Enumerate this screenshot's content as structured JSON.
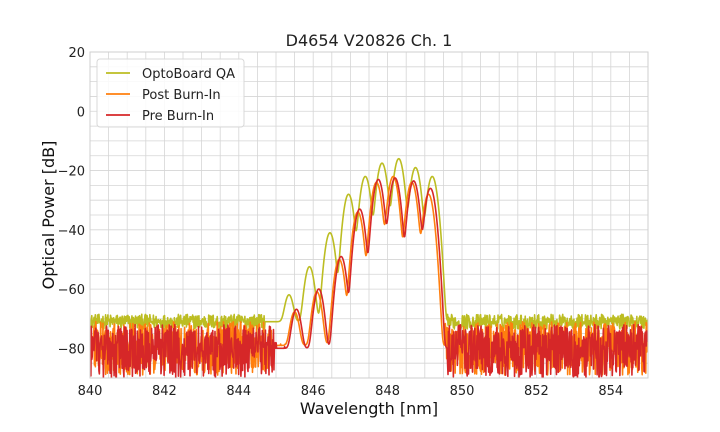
{
  "chart_data": {
    "type": "line",
    "title": "D4654 V20826 Ch. 1",
    "xlabel": "Wavelength [nm]",
    "ylabel": "Optical Power [dB]",
    "xlim": [
      840,
      855
    ],
    "ylim": [
      -90,
      20
    ],
    "x_ticks": [
      "840",
      "842",
      "844",
      "846",
      "848",
      "850",
      "852",
      "854"
    ],
    "x_tick_values": [
      840,
      842,
      844,
      846,
      848,
      850,
      852,
      854
    ],
    "y_ticks": [
      "20",
      "0",
      "−20",
      "−40",
      "−60",
      "−80"
    ],
    "y_tick_values": [
      20,
      0,
      -20,
      -40,
      -60,
      -80
    ],
    "x_minor_step": 0.5,
    "y_minor_step": 5,
    "grid": true,
    "legend_position": "top-left",
    "series": [
      {
        "name": "OptoBoard QA",
        "color": "#bcbd22",
        "noise_floor": -71,
        "noise_spread": 5,
        "peaks": [
          {
            "x": 845.35,
            "y": -62.5
          },
          {
            "x": 845.9,
            "y": -52.5
          },
          {
            "x": 846.45,
            "y": -41
          },
          {
            "x": 846.95,
            "y": -28
          },
          {
            "x": 847.4,
            "y": -22
          },
          {
            "x": 847.85,
            "y": -17.5
          },
          {
            "x": 848.3,
            "y": -16
          },
          {
            "x": 848.75,
            "y": -19
          },
          {
            "x": 849.2,
            "y": -22
          }
        ],
        "edge_low": 845.1,
        "edge_high": 849.45
      },
      {
        "name": "Post Burn-In",
        "color": "#ff7f0e",
        "noise_floor": -79,
        "noise_spread": 10,
        "peaks": [
          {
            "x": 845.5,
            "y": -68
          },
          {
            "x": 846.1,
            "y": -61
          },
          {
            "x": 846.7,
            "y": -50
          },
          {
            "x": 847.2,
            "y": -34
          },
          {
            "x": 847.7,
            "y": -24
          },
          {
            "x": 848.15,
            "y": -22
          },
          {
            "x": 848.65,
            "y": -24
          },
          {
            "x": 849.1,
            "y": -28
          }
        ],
        "edge_low": 845.3,
        "edge_high": 849.4
      },
      {
        "name": "Pre Burn-In",
        "color": "#d62728",
        "noise_floor": -80,
        "noise_spread": 10,
        "peaks": [
          {
            "x": 845.55,
            "y": -67
          },
          {
            "x": 846.15,
            "y": -60
          },
          {
            "x": 846.75,
            "y": -49
          },
          {
            "x": 847.25,
            "y": -33
          },
          {
            "x": 847.75,
            "y": -23
          },
          {
            "x": 848.2,
            "y": -22.5
          },
          {
            "x": 848.7,
            "y": -23.5
          },
          {
            "x": 849.15,
            "y": -26
          }
        ],
        "edge_low": 845.35,
        "edge_high": 849.45
      }
    ]
  }
}
